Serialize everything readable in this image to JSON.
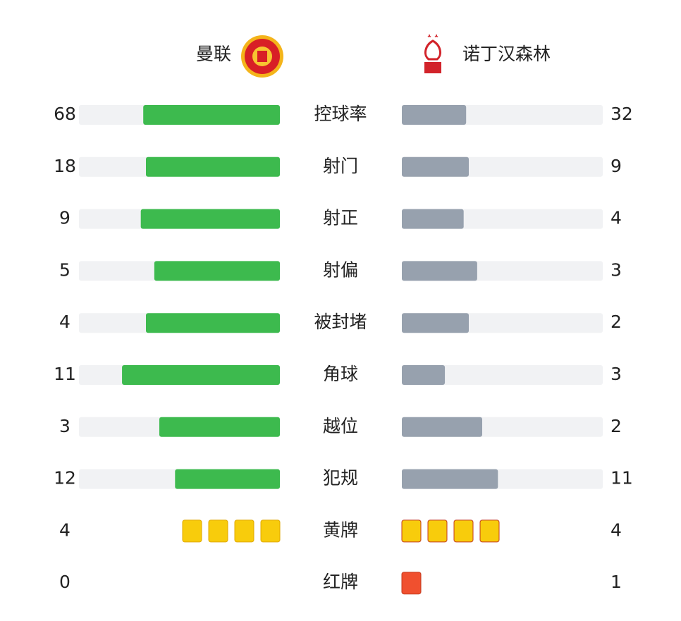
{
  "home": {
    "name": "曼联"
  },
  "away": {
    "name": "诺丁汉森林"
  },
  "colors": {
    "home_bar": "#3dba4e",
    "away_bar": "#97a1ae",
    "track": "#f1f2f4"
  },
  "stats": [
    {
      "label": "控球率",
      "home": 68,
      "away": 32,
      "display": "bar"
    },
    {
      "label": "射门",
      "home": 18,
      "away": 9,
      "display": "bar"
    },
    {
      "label": "射正",
      "home": 9,
      "away": 4,
      "display": "bar"
    },
    {
      "label": "射偏",
      "home": 5,
      "away": 3,
      "display": "bar"
    },
    {
      "label": "被封堵",
      "home": 4,
      "away": 2,
      "display": "bar"
    },
    {
      "label": "角球",
      "home": 11,
      "away": 3,
      "display": "bar"
    },
    {
      "label": "越位",
      "home": 3,
      "away": 2,
      "display": "bar"
    },
    {
      "label": "犯规",
      "home": 12,
      "away": 11,
      "display": "bar"
    },
    {
      "label": "黄牌",
      "home": 4,
      "away": 4,
      "display": "cards",
      "color": "#f8cc0c"
    },
    {
      "label": "红牌",
      "home": 0,
      "away": 1,
      "display": "cards",
      "color": "#f0502f"
    }
  ]
}
